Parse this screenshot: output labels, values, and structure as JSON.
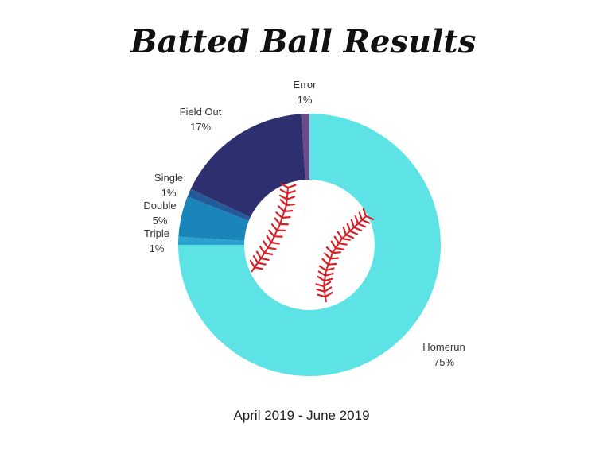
{
  "chart_data": {
    "type": "pie",
    "donut": true,
    "title": "Batted Ball Results",
    "subtitle": "April 2019 - June 2019",
    "slices": [
      {
        "label": "Homerun",
        "value": 75,
        "pct_label": "75%",
        "color": "#5de3e6"
      },
      {
        "label": "Triple",
        "value": 1,
        "pct_label": "1%",
        "color": "#2aa4cf"
      },
      {
        "label": "Double",
        "value": 5,
        "pct_label": "5%",
        "color": "#1a85b8"
      },
      {
        "label": "Single",
        "value": 1,
        "pct_label": "1%",
        "color": "#255a9a"
      },
      {
        "label": "Field Out",
        "value": 17,
        "pct_label": "17%",
        "color": "#2e2f6e"
      },
      {
        "label": "Error",
        "value": 1,
        "pct_label": "1%",
        "color": "#6a4a8a"
      }
    ],
    "center_icon": "baseball-icon",
    "colors": {
      "stitch": "#d81f26",
      "ball": "#ffffff"
    }
  }
}
